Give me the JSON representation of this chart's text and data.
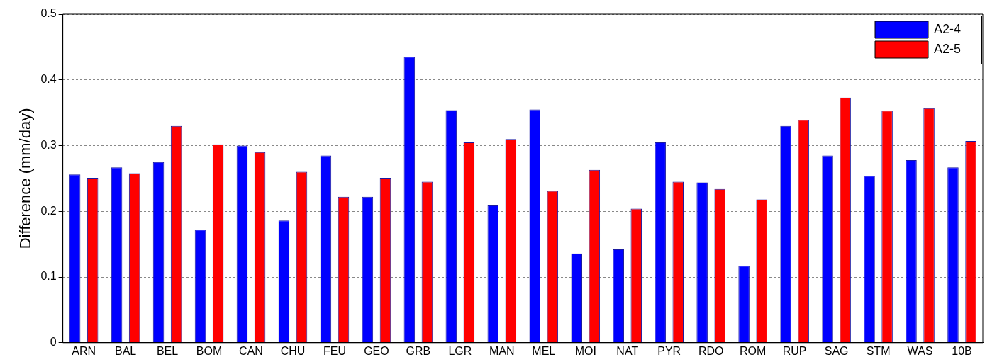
{
  "chart_data": {
    "type": "bar",
    "ylabel": "Difference (mm/day)",
    "categories": [
      "ARN",
      "BAL",
      "BEL",
      "BOM",
      "CAN",
      "CHU",
      "FEU",
      "GEO",
      "GRB",
      "LGR",
      "MAN",
      "MEL",
      "MOI",
      "NAT",
      "PYR",
      "RDO",
      "ROM",
      "RUP",
      "SAG",
      "STM",
      "WAS",
      "10B"
    ],
    "series": [
      {
        "name": "A2-4",
        "color": "#0000ff",
        "values": [
          0.256,
          0.267,
          0.275,
          0.172,
          0.3,
          0.186,
          0.285,
          0.222,
          0.435,
          0.354,
          0.209,
          0.355,
          0.136,
          0.142,
          0.305,
          0.244,
          0.117,
          0.33,
          0.285,
          0.254,
          0.278,
          0.267
        ]
      },
      {
        "name": "A2-5",
        "color": "#ff0000",
        "values": [
          0.251,
          0.258,
          0.33,
          0.302,
          0.29,
          0.26,
          0.222,
          0.251,
          0.245,
          0.305,
          0.31,
          0.231,
          0.263,
          0.204,
          0.245,
          0.234,
          0.218,
          0.339,
          0.373,
          0.353,
          0.357,
          0.307
        ]
      }
    ],
    "ylim": [
      0,
      0.5
    ],
    "yticks": [
      0,
      0.1,
      0.2,
      0.3,
      0.4,
      0.5
    ],
    "grid": "y",
    "legend": "top right"
  }
}
